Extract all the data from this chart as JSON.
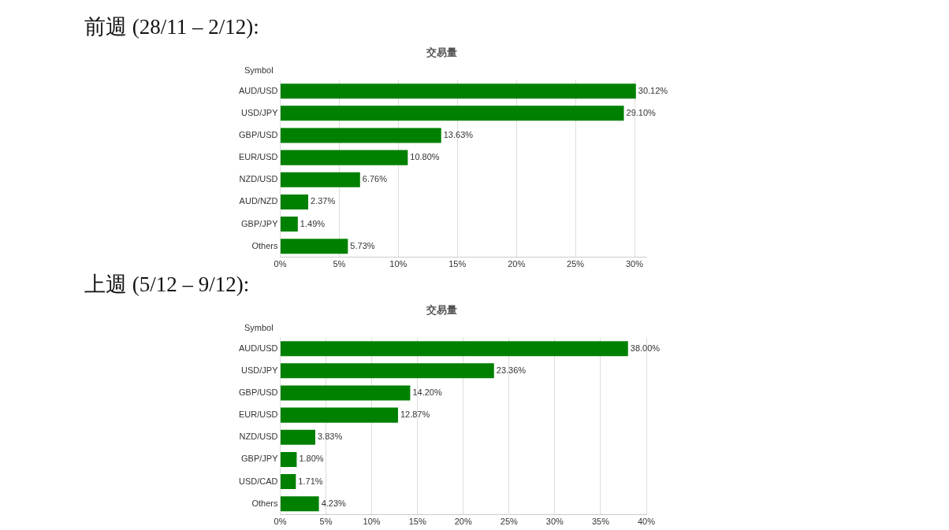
{
  "chart_data": [
    {
      "type": "bar",
      "orientation": "horizontal",
      "title": "前週 (28/11 – 2/12):",
      "subtitle": "交易量",
      "ylabel": "Symbol",
      "categories": [
        "AUD/USD",
        "USD/JPY",
        "GBP/USD",
        "EUR/USD",
        "NZD/USD",
        "AUD/NZD",
        "GBP/JPY",
        "Others"
      ],
      "values": [
        30.12,
        29.1,
        13.63,
        10.8,
        6.76,
        2.37,
        1.49,
        5.73
      ],
      "value_labels": [
        "30.12%",
        "29.10%",
        "13.63%",
        "10.80%",
        "6.76%",
        "2.37%",
        "1.49%",
        "5.73%"
      ],
      "color": "#008000",
      "xlim": [
        0,
        31
      ],
      "xticks": [
        {
          "value": 0,
          "label": "0%"
        },
        {
          "value": 5,
          "label": "5%"
        },
        {
          "value": 10,
          "label": "10%"
        },
        {
          "value": 15,
          "label": "15%"
        },
        {
          "value": 20,
          "label": "20%"
        },
        {
          "value": 25,
          "label": "25%"
        },
        {
          "value": 30,
          "label": "30%"
        }
      ],
      "grid": "x",
      "legend": false
    },
    {
      "type": "bar",
      "orientation": "horizontal",
      "title": "上週 (5/12 – 9/12):",
      "subtitle": "交易量",
      "ylabel": "Symbol",
      "categories": [
        "AUD/USD",
        "USD/JPY",
        "GBP/USD",
        "EUR/USD",
        "NZD/USD",
        "GBP/JPY",
        "USD/CAD",
        "Others"
      ],
      "values": [
        38.0,
        23.36,
        14.2,
        12.87,
        3.83,
        1.8,
        1.71,
        4.23
      ],
      "value_labels": [
        "38.00%",
        "23.36%",
        "14.20%",
        "12.87%",
        "3.83%",
        "1.80%",
        "1.71%",
        "4.23%"
      ],
      "color": "#008000",
      "xlim": [
        0,
        40
      ],
      "xticks": [
        {
          "value": 0,
          "label": "0%"
        },
        {
          "value": 5,
          "label": "5%"
        },
        {
          "value": 10,
          "label": "10%"
        },
        {
          "value": 15,
          "label": "15%"
        },
        {
          "value": 20,
          "label": "20%"
        },
        {
          "value": 25,
          "label": "25%"
        },
        {
          "value": 30,
          "label": "30%"
        },
        {
          "value": 35,
          "label": "35%"
        },
        {
          "value": 40,
          "label": "40%"
        }
      ],
      "grid": "x",
      "legend": false
    }
  ]
}
